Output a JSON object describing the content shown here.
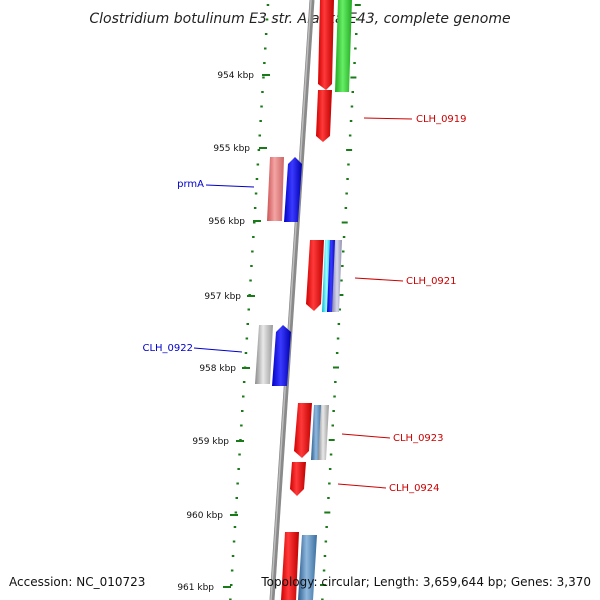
{
  "title": "Clostridium botulinum E3 str. Alaska E43, complete genome",
  "footer": {
    "accession": "Accession: NC_010723",
    "topology": "Topology: circular; Length: 3,659,644 bp; Genes: 3,370"
  },
  "colors": {
    "backbone": "#888888",
    "tick": "#1a7a1a",
    "forward_gene": "#ff0000",
    "reverse_gene": "#0000ff",
    "label_forward": "#cc0000",
    "label_reverse": "#0000cc",
    "green_feature": "#33cc33",
    "cyan_feature": "#00e5ff",
    "steel_feature": "#4a7fb0",
    "grey_feature": "#aaaaaa",
    "pink_feature": "#e07070"
  },
  "scale_labels": [
    "954 kbp",
    "955 kbp",
    "956 kbp",
    "957 kbp",
    "958 kbp",
    "959 kbp",
    "960 kbp",
    "961 kbp"
  ],
  "gene_labels": [
    {
      "text": "CLH_0919",
      "strand": "forward"
    },
    {
      "text": "prmA",
      "strand": "reverse"
    },
    {
      "text": "CLH_0921",
      "strand": "forward"
    },
    {
      "text": "CLH_0922",
      "strand": "reverse"
    },
    {
      "text": "CLH_0923",
      "strand": "forward"
    },
    {
      "text": "CLH_0924",
      "strand": "forward"
    }
  ]
}
